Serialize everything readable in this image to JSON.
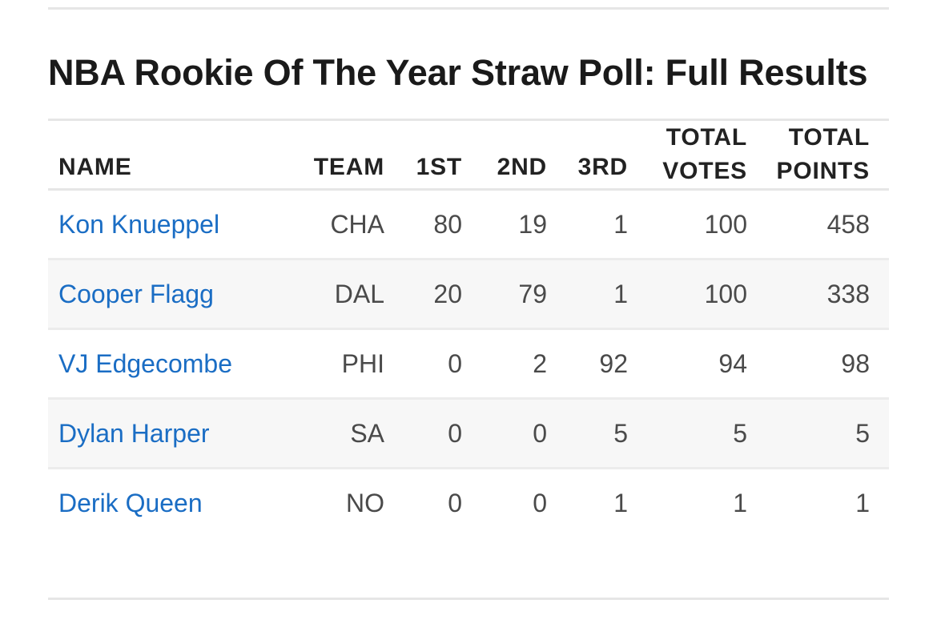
{
  "title": "NBA Rookie Of The Year Straw Poll: Full Results",
  "table": {
    "headers": {
      "name": "NAME",
      "team": "TEAM",
      "first": "1ST",
      "second": "2ND",
      "third": "3RD",
      "total_votes_line1": "TOTAL",
      "total_votes_line2": "VOTES",
      "total_points_line1": "TOTAL",
      "total_points_line2": "POINTS"
    },
    "rows": [
      {
        "name": "Kon Knueppel",
        "team": "CHA",
        "first": "80",
        "second": "19",
        "third": "1",
        "total_votes": "100",
        "total_points": "458"
      },
      {
        "name": "Cooper Flagg",
        "team": "DAL",
        "first": "20",
        "second": "79",
        "third": "1",
        "total_votes": "100",
        "total_points": "338"
      },
      {
        "name": "VJ Edgecombe",
        "team": "PHI",
        "first": "0",
        "second": "2",
        "third": "92",
        "total_votes": "94",
        "total_points": "98"
      },
      {
        "name": "Dylan Harper",
        "team": "SA",
        "first": "0",
        "second": "0",
        "third": "5",
        "total_votes": "5",
        "total_points": "5"
      },
      {
        "name": "Derik Queen",
        "team": "NO",
        "first": "0",
        "second": "0",
        "third": "1",
        "total_votes": "1",
        "total_points": "1"
      }
    ]
  },
  "colors": {
    "link": "#1a6dc4",
    "rule": "#e6e6e6",
    "alt_row": "#f7f7f7"
  }
}
